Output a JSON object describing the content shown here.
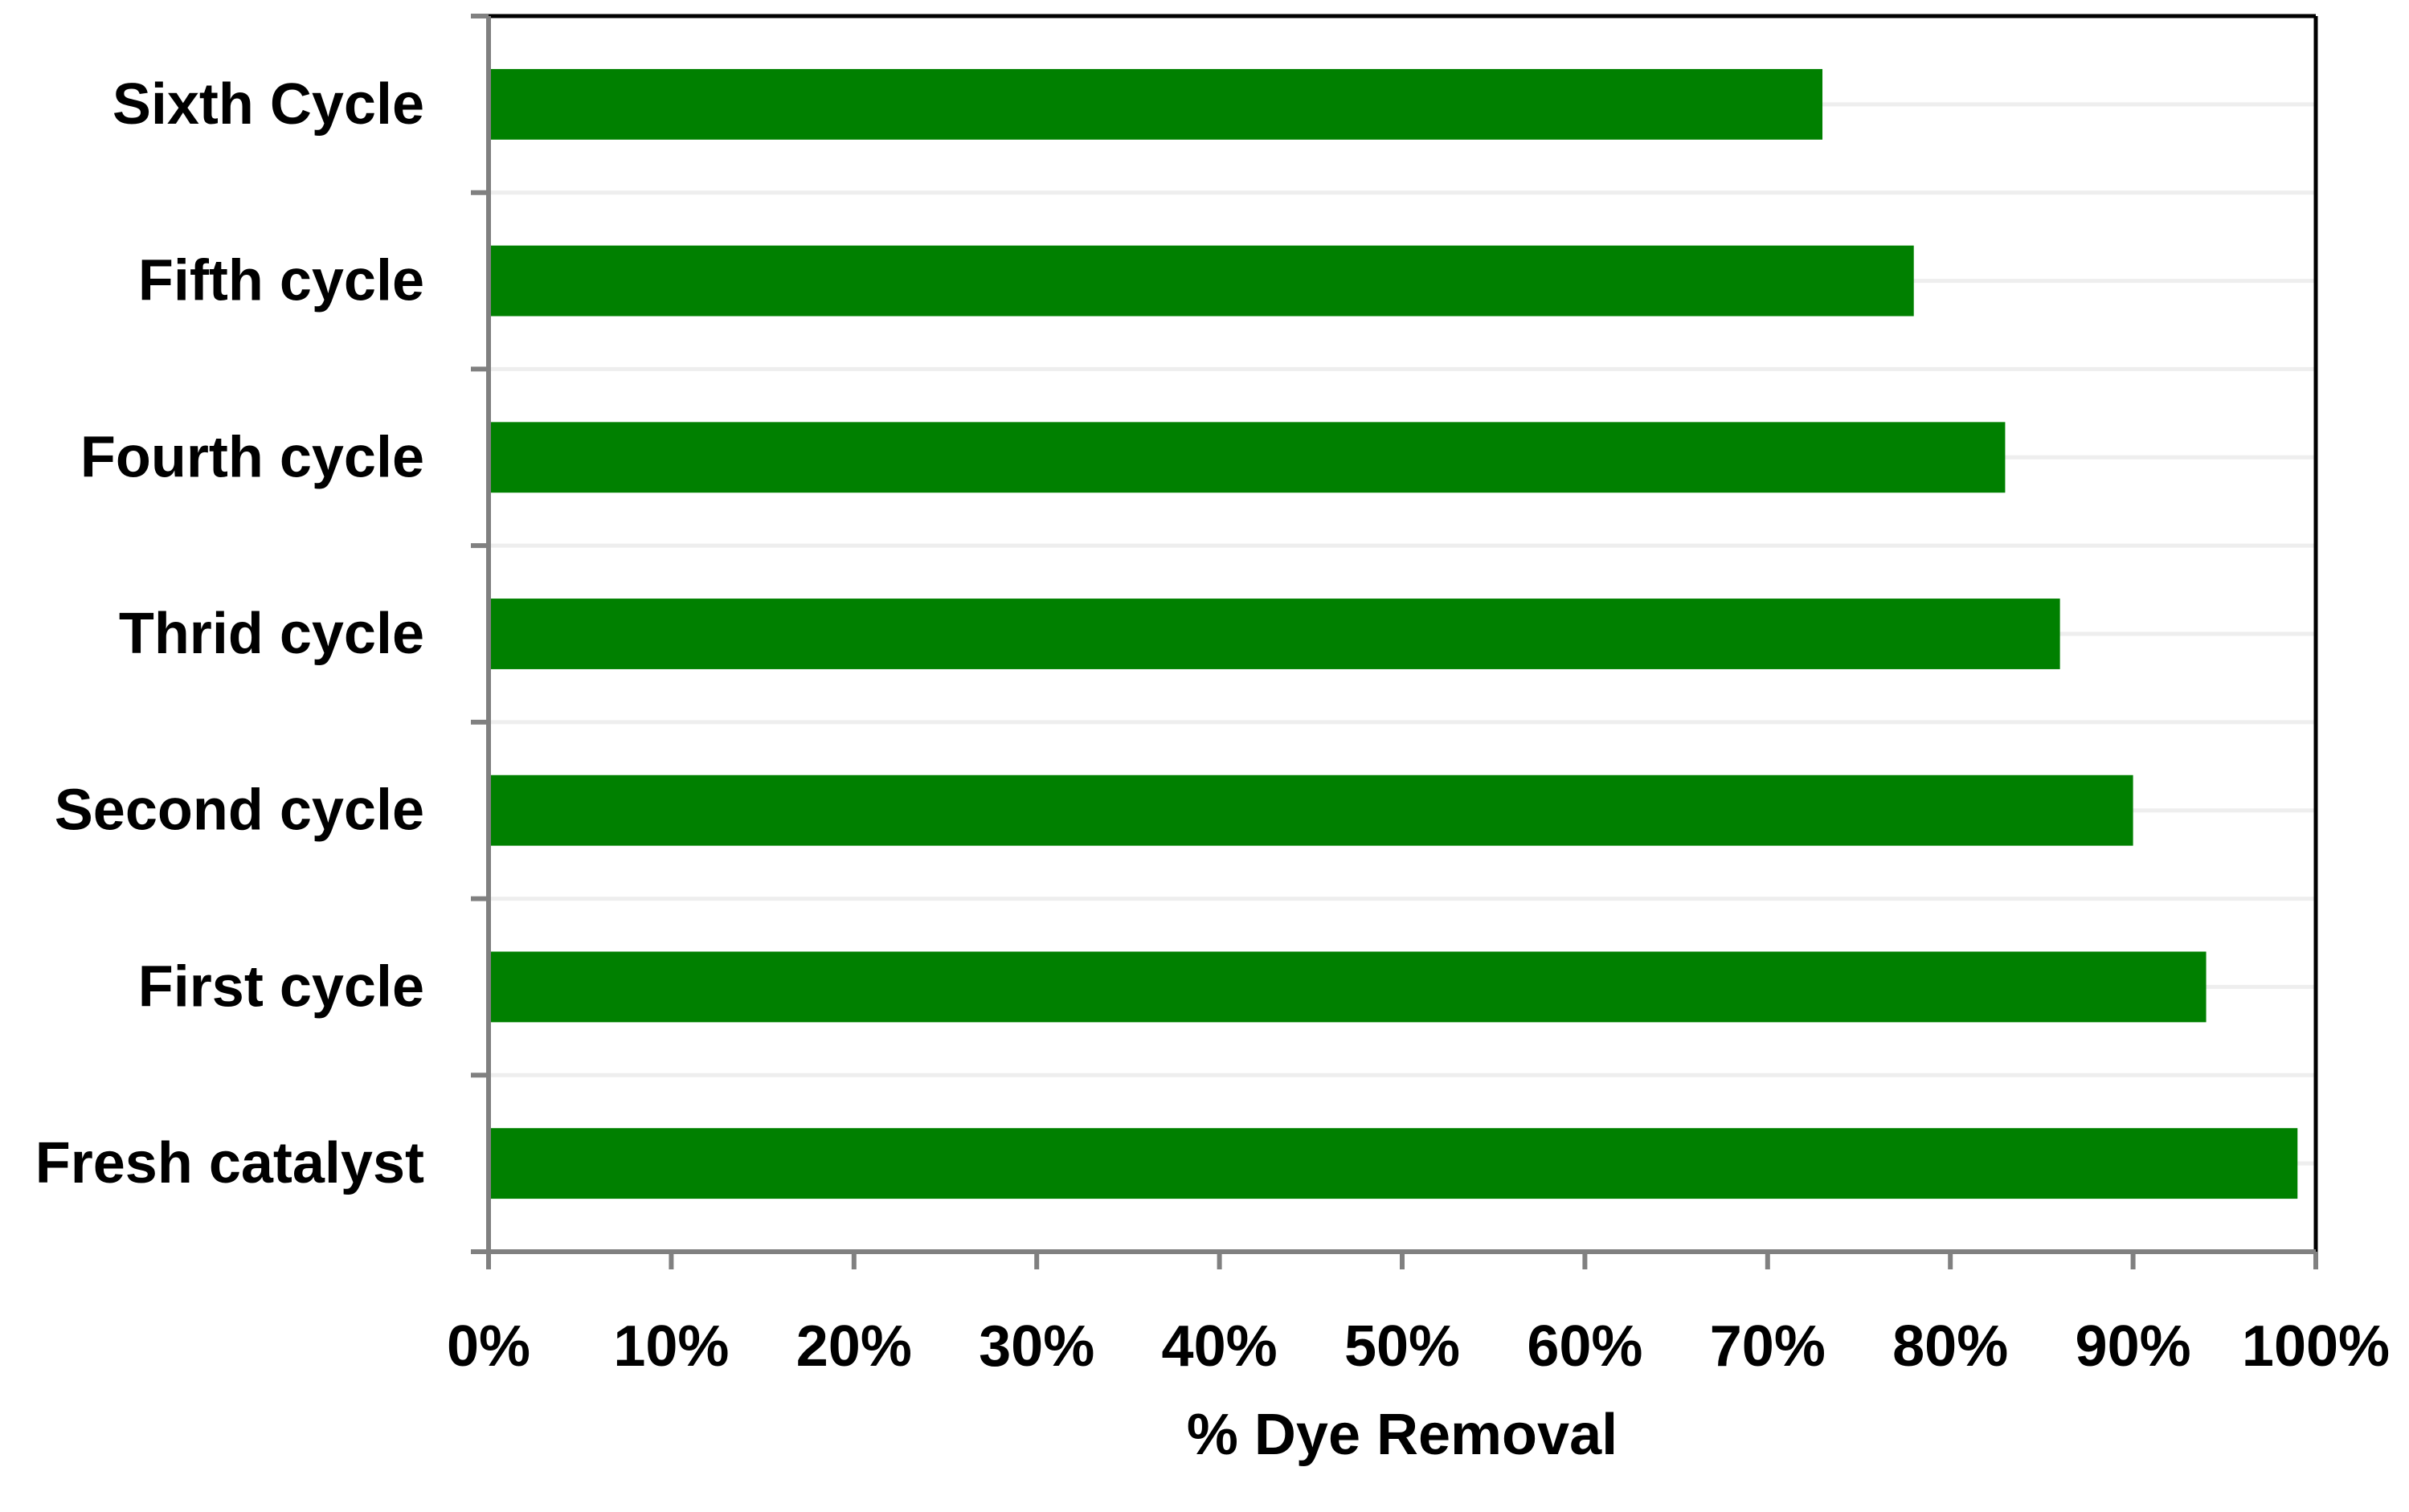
{
  "chart_data": {
    "type": "bar",
    "orientation": "horizontal",
    "categories": [
      "Fresh catalyst",
      "First cycle",
      "Second cycle",
      "Thrid cycle",
      "Fourth cycle",
      "Fifth cycle",
      "Sixth Cycle"
    ],
    "values": [
      99,
      94,
      90,
      86,
      83,
      78,
      73
    ],
    "title": "",
    "xlabel": "% Dye Removal",
    "ylabel": "",
    "xlim": [
      0,
      100
    ],
    "x_ticks": [
      "0%",
      "10%",
      "20%",
      "30%",
      "40%",
      "50%",
      "60%",
      "70%",
      "80%",
      "90%",
      "100%"
    ],
    "x_tick_values": [
      0,
      10,
      20,
      30,
      40,
      50,
      60,
      70,
      80,
      90,
      100
    ],
    "grid": "horizontal-lines",
    "legend": "none",
    "colors": {
      "bar": "#008000",
      "axis": "#808080",
      "frame": "#000000",
      "gridline": "#eeeeee"
    }
  }
}
